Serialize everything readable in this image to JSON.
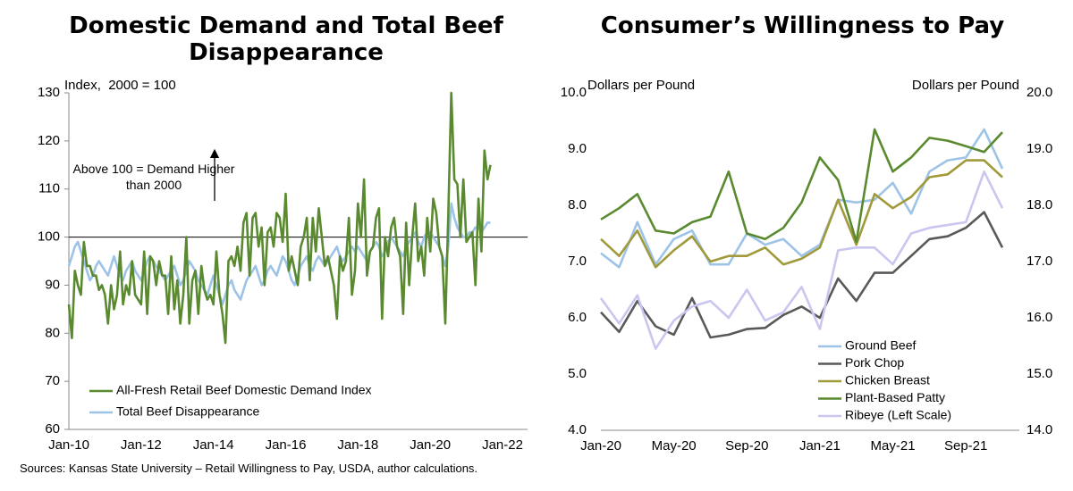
{
  "chart_data": [
    {
      "type": "line",
      "title": "Domestic Demand and Total Beef Disappearance",
      "y_label": "Index,  2000 = 100",
      "annotation": "Above 100 = Demand Higher than 2000",
      "hline": 100,
      "legend": "lower left",
      "source": "Sources: Kansas State University – Retail Willingness to Pay, USDA, author calculations.",
      "ylim": [
        60,
        130
      ],
      "yticks": [
        60,
        70,
        80,
        90,
        100,
        110,
        120,
        130
      ],
      "categories": [
        "Jan-10",
        null,
        null,
        null,
        null,
        null,
        null,
        null,
        null,
        null,
        null,
        null,
        null,
        null,
        null,
        null,
        null,
        null,
        null,
        null,
        null,
        null,
        null,
        null,
        "Jan-12",
        null,
        null,
        null,
        null,
        null,
        null,
        null,
        null,
        null,
        null,
        null,
        null,
        null,
        null,
        null,
        null,
        null,
        null,
        null,
        null,
        null,
        null,
        null,
        "Jan-14",
        null,
        null,
        null,
        null,
        null,
        null,
        null,
        null,
        null,
        null,
        null,
        null,
        null,
        null,
        null,
        null,
        null,
        null,
        null,
        null,
        null,
        null,
        null,
        "Jan-16",
        null,
        null,
        null,
        null,
        null,
        null,
        null,
        null,
        null,
        null,
        null,
        null,
        null,
        null,
        null,
        null,
        null,
        null,
        null,
        null,
        null,
        null,
        null,
        "Jan-18",
        null,
        null,
        null,
        null,
        null,
        null,
        null,
        null,
        null,
        null,
        null,
        null,
        null,
        null,
        null,
        null,
        null,
        null,
        null,
        null,
        null,
        null,
        null,
        "Jan-20",
        null,
        null,
        null,
        null,
        null,
        null,
        null,
        null,
        null,
        null,
        null,
        null,
        null,
        null,
        null,
        null,
        null,
        null,
        null,
        null,
        null,
        null,
        null,
        "Jan-22"
      ],
      "series": [
        {
          "name": "All-Fresh Retail Beef Domestic Demand Index",
          "color": "#5a8a2f",
          "values": [
            86,
            79,
            93,
            90,
            88,
            99,
            94,
            94,
            92,
            92,
            89,
            90,
            88,
            82,
            90,
            85,
            88,
            97,
            86,
            90,
            88,
            95,
            88,
            87,
            86,
            97,
            84,
            96,
            95,
            90,
            95,
            92,
            92,
            84,
            96,
            85,
            91,
            82,
            88,
            100,
            82,
            91,
            93,
            84,
            94,
            89,
            87,
            88,
            86,
            97,
            88,
            84,
            78,
            95,
            96,
            94,
            98,
            93,
            103,
            105,
            92,
            104,
            105,
            98,
            102,
            90,
            101,
            102,
            98,
            105,
            104,
            99,
            109,
            93,
            96,
            93,
            90,
            98,
            100,
            104,
            91,
            104,
            97,
            106,
            100,
            94,
            96,
            93,
            90,
            83,
            96,
            93,
            95,
            104,
            88,
            93,
            107,
            100,
            112,
            92,
            97,
            98,
            104,
            106,
            83,
            100,
            96,
            102,
            104,
            98,
            96,
            84,
            103,
            90,
            100,
            107,
            95,
            98,
            92,
            104,
            97,
            108,
            105,
            98,
            96,
            82,
            105,
            130,
            112,
            111,
            100,
            112,
            99,
            100,
            101,
            90,
            108,
            97,
            118,
            112,
            115,
            null,
            null,
            null,
            null
          ]
        },
        {
          "name": "Total Beef Disappearance",
          "color": "#9dc3e6",
          "values": [
            94,
            96,
            98,
            99,
            97,
            95,
            93,
            91,
            92,
            94,
            95,
            94,
            93,
            92,
            94,
            96,
            94,
            92,
            91,
            93,
            94,
            95,
            93,
            92,
            91,
            93,
            95,
            96,
            95,
            94,
            93,
            92,
            91,
            92,
            93,
            94,
            92,
            90,
            91,
            93,
            95,
            94,
            93,
            91,
            90,
            89,
            88,
            90,
            92,
            90,
            88,
            86,
            88,
            90,
            91,
            89,
            88,
            87,
            89,
            91,
            92,
            93,
            94,
            92,
            90,
            91,
            93,
            94,
            93,
            92,
            94,
            96,
            95,
            93,
            91,
            90,
            92,
            94,
            95,
            96,
            94,
            93,
            95,
            96,
            95,
            94,
            95,
            96,
            97,
            98,
            96,
            95,
            96,
            97,
            98,
            97,
            98,
            97,
            96,
            95,
            97,
            98,
            99,
            98,
            96,
            97,
            99,
            100,
            99,
            98,
            97,
            96,
            98,
            99,
            100,
            101,
            99,
            98,
            100,
            101,
            101,
            100,
            99,
            98,
            96,
            94,
            98,
            107,
            104,
            102,
            101,
            100,
            100,
            101,
            101,
            102,
            102,
            101,
            102,
            103,
            103,
            null,
            null,
            null,
            null
          ]
        }
      ]
    },
    {
      "type": "line",
      "title": "Consumer’s Willingness to Pay",
      "y_label": "Dollars per Pound",
      "y2_label": "Dollars per Pound",
      "legend": "lower right",
      "ylim": [
        4,
        10
      ],
      "yticks": [
        {
          "value": 4,
          "label": "4.0"
        },
        {
          "value": 5,
          "label": "5.0"
        },
        {
          "value": 6,
          "label": "6.0"
        },
        {
          "value": 7,
          "label": "7.0"
        },
        {
          "value": 8,
          "label": "8.0"
        },
        {
          "value": 9,
          "label": "9.0"
        },
        {
          "value": 10,
          "label": "10.0"
        }
      ],
      "y2lim": [
        14,
        20
      ],
      "y2ticks": [
        {
          "value": 14,
          "label": "14.0"
        },
        {
          "value": 15,
          "label": "15.0"
        },
        {
          "value": 16,
          "label": "16.0"
        },
        {
          "value": 17,
          "label": "17.0"
        },
        {
          "value": 18,
          "label": "18.0"
        },
        {
          "value": 19,
          "label": "19.0"
        },
        {
          "value": 20,
          "label": "20.0"
        }
      ],
      "categories": [
        "Jan-20",
        null,
        null,
        null,
        "May-20",
        null,
        null,
        null,
        "Sep-20",
        null,
        null,
        null,
        "Jan-21",
        null,
        null,
        null,
        "May-21",
        null,
        null,
        null,
        "Sep-21",
        null,
        null
      ],
      "series": [
        {
          "name": "Ground Beef",
          "color": "#9dc3e6",
          "axis": "y2",
          "values": [
            17.15,
            16.9,
            17.7,
            16.95,
            17.4,
            17.55,
            16.95,
            16.95,
            17.5,
            17.3,
            17.4,
            17.1,
            17.3,
            18.1,
            18.05,
            18.1,
            18.4,
            17.85,
            18.6,
            18.8,
            18.85,
            19.35,
            18.65
          ]
        },
        {
          "name": "Pork Chop",
          "color": "#595959",
          "axis": "y2",
          "values": [
            16.1,
            15.75,
            16.3,
            15.85,
            15.7,
            16.35,
            15.65,
            15.7,
            15.8,
            15.82,
            16.05,
            16.2,
            16.0,
            16.7,
            16.3,
            16.8,
            16.8,
            17.1,
            17.4,
            17.45,
            17.6,
            17.88,
            17.25
          ]
        },
        {
          "name": "Chicken Breast",
          "color": "#a09a3a",
          "axis": "y2",
          "values": [
            17.4,
            17.1,
            17.55,
            16.9,
            17.2,
            17.45,
            17.0,
            17.1,
            17.1,
            17.25,
            16.95,
            17.05,
            17.25,
            18.1,
            17.3,
            18.2,
            17.95,
            18.15,
            18.5,
            18.55,
            18.8,
            18.8,
            18.5
          ]
        },
        {
          "name": "Plant-Based Patty",
          "color": "#5a8a2f",
          "axis": "y2",
          "values": [
            17.75,
            17.95,
            18.2,
            17.55,
            17.5,
            17.7,
            17.8,
            18.6,
            17.5,
            17.4,
            17.6,
            18.05,
            18.85,
            18.45,
            17.35,
            19.35,
            18.6,
            18.85,
            19.2,
            19.15,
            19.05,
            18.95,
            19.3
          ]
        },
        {
          "name": "Ribeye (Left Scale)",
          "color": "#c9c6ef",
          "values": [
            6.35,
            5.9,
            6.4,
            5.45,
            5.95,
            6.2,
            6.3,
            6.0,
            6.5,
            5.95,
            6.1,
            6.55,
            5.8,
            7.2,
            7.25,
            7.25,
            6.95,
            7.5,
            7.6,
            7.65,
            7.7,
            8.6,
            7.95
          ]
        }
      ]
    }
  ]
}
